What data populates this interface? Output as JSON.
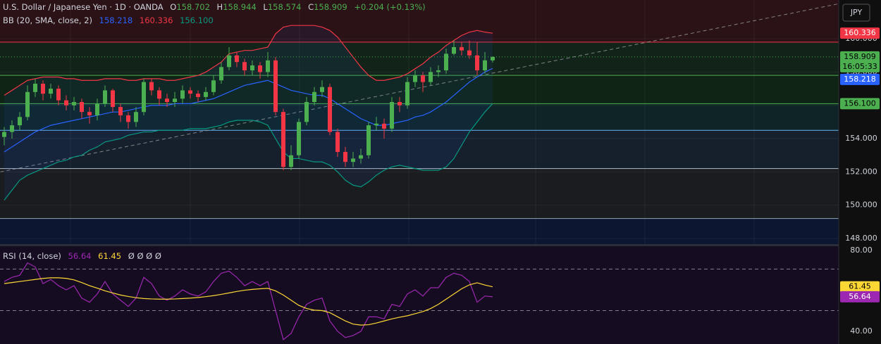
{
  "chart_data": {
    "type": "candlestick",
    "title": "U.S. Dollar / Japanese Yen · 1D · OANDA",
    "ohlc_letters": [
      "O",
      "H",
      "L",
      "C"
    ],
    "change": "+0.204 (+0.13%)",
    "currency": "JPY",
    "countdown": "16:05:33",
    "up_color": "#4caf50",
    "down_color": "#f23645",
    "ylim": [
      147.66,
      162.33
    ],
    "yticks": [
      {
        "value": 148,
        "label": "148.000"
      },
      {
        "value": 150,
        "label": "150.000"
      },
      {
        "value": 152,
        "label": "152.000"
      },
      {
        "value": 154,
        "label": "154.000"
      },
      {
        "value": 156,
        "label": "156.000"
      },
      {
        "value": 158,
        "label": "158.000"
      },
      {
        "value": 160,
        "label": "160.000"
      }
    ],
    "grid": true,
    "candles": [
      [
        154.1,
        154.7,
        153.6,
        154.4
      ],
      [
        154.4,
        155.1,
        154.0,
        154.8
      ],
      [
        154.8,
        155.6,
        154.5,
        155.3
      ],
      [
        155.3,
        157.2,
        155.1,
        156.8
      ],
      [
        156.8,
        157.6,
        156.5,
        157.3
      ],
      [
        157.3,
        157.5,
        156.3,
        156.7
      ],
      [
        156.7,
        157.3,
        156.4,
        157.0
      ],
      [
        157.0,
        157.2,
        156.0,
        156.3
      ],
      [
        156.3,
        156.6,
        155.7,
        156.0
      ],
      [
        156.0,
        156.5,
        155.7,
        156.2
      ],
      [
        156.2,
        156.4,
        155.2,
        155.6
      ],
      [
        155.6,
        155.9,
        154.9,
        155.4
      ],
      [
        155.4,
        156.4,
        155.1,
        156.1
      ],
      [
        156.1,
        157.2,
        155.9,
        156.9
      ],
      [
        156.9,
        157.0,
        155.6,
        155.9
      ],
      [
        155.9,
        156.1,
        155.0,
        155.4
      ],
      [
        155.4,
        155.6,
        154.6,
        155.0
      ],
      [
        155.0,
        155.9,
        154.7,
        155.6
      ],
      [
        155.6,
        157.6,
        155.4,
        157.4
      ],
      [
        157.4,
        157.6,
        156.6,
        156.9
      ],
      [
        156.9,
        157.1,
        156.0,
        156.4
      ],
      [
        156.4,
        156.7,
        155.9,
        156.2
      ],
      [
        156.2,
        156.8,
        155.9,
        156.4
      ],
      [
        156.4,
        157.2,
        156.1,
        156.9
      ],
      [
        156.9,
        157.1,
        156.4,
        156.7
      ],
      [
        156.7,
        156.9,
        156.2,
        156.5
      ],
      [
        156.5,
        157.1,
        156.3,
        156.8
      ],
      [
        156.8,
        157.8,
        156.6,
        157.5
      ],
      [
        157.5,
        158.6,
        157.3,
        158.3
      ],
      [
        158.3,
        159.5,
        158.1,
        159.0
      ],
      [
        159.0,
        159.2,
        158.3,
        158.6
      ],
      [
        158.6,
        158.8,
        157.8,
        158.1
      ],
      [
        158.1,
        158.7,
        157.8,
        158.4
      ],
      [
        158.4,
        158.6,
        157.6,
        158.0
      ],
      [
        158.0,
        159.2,
        157.7,
        158.7
      ],
      [
        158.7,
        158.9,
        155.4,
        155.6
      ],
      [
        155.6,
        155.8,
        152.1,
        152.3
      ],
      [
        152.3,
        153.6,
        152.1,
        153.0
      ],
      [
        153.0,
        155.2,
        152.8,
        155.0
      ],
      [
        155.0,
        156.5,
        154.8,
        156.2
      ],
      [
        156.2,
        157.1,
        156.0,
        156.8
      ],
      [
        156.8,
        157.5,
        156.5,
        157.1
      ],
      [
        157.1,
        157.3,
        154.2,
        154.4
      ],
      [
        154.4,
        154.6,
        152.9,
        153.2
      ],
      [
        153.2,
        153.5,
        152.3,
        152.6
      ],
      [
        152.6,
        153.2,
        152.3,
        152.8
      ],
      [
        152.8,
        153.4,
        152.5,
        153.0
      ],
      [
        153.0,
        155.0,
        152.8,
        154.8
      ],
      [
        154.8,
        155.3,
        154.5,
        154.9
      ],
      [
        154.9,
        155.2,
        154.0,
        154.6
      ],
      [
        154.6,
        156.5,
        154.4,
        156.2
      ],
      [
        156.2,
        156.5,
        155.6,
        156.0
      ],
      [
        156.0,
        157.7,
        155.8,
        157.4
      ],
      [
        157.4,
        158.1,
        157.1,
        157.8
      ],
      [
        157.8,
        158.0,
        156.8,
        157.4
      ],
      [
        157.4,
        158.3,
        157.2,
        158.0
      ],
      [
        158.0,
        158.4,
        157.7,
        158.1
      ],
      [
        158.1,
        159.4,
        157.9,
        159.1
      ],
      [
        159.1,
        159.9,
        159.0,
        159.5
      ],
      [
        159.5,
        159.8,
        159.0,
        159.3
      ],
      [
        159.3,
        159.9,
        158.8,
        159.0
      ],
      [
        159.0,
        159.8,
        157.8,
        158.1
      ],
      [
        158.1,
        159.2,
        157.9,
        158.705
      ],
      [
        158.702,
        158.944,
        158.574,
        158.909
      ]
    ],
    "bands": {
      "label": "BB (20, SMA, close, 2)",
      "fill": "#2962ff",
      "series": [
        {
          "color": "#2962ff",
          "values": [
            153.2,
            153.5,
            153.8,
            154.1,
            154.4,
            154.6,
            154.8,
            154.9,
            155.0,
            155.1,
            155.2,
            155.3,
            155.4,
            155.5,
            155.6,
            155.6,
            155.7,
            155.8,
            155.9,
            156.0,
            156.0,
            156.0,
            156.1,
            156.1,
            156.1,
            156.2,
            156.3,
            156.4,
            156.6,
            156.8,
            157.0,
            157.2,
            157.3,
            157.4,
            157.5,
            157.3,
            157.1,
            156.9,
            156.8,
            156.7,
            156.6,
            156.6,
            156.4,
            156.1,
            155.8,
            155.5,
            155.2,
            155.0,
            154.8,
            154.8,
            154.9,
            155.0,
            155.1,
            155.3,
            155.4,
            155.6,
            155.9,
            156.2,
            156.6,
            157.0,
            157.4,
            157.7,
            158.0,
            158.218
          ]
        },
        {
          "color": "#f23645",
          "values": [
            156.6,
            156.9,
            157.2,
            157.5,
            157.6,
            157.7,
            157.7,
            157.7,
            157.6,
            157.6,
            157.5,
            157.5,
            157.5,
            157.6,
            157.6,
            157.6,
            157.5,
            157.5,
            157.6,
            157.6,
            157.6,
            157.5,
            157.5,
            157.6,
            157.7,
            157.8,
            158.0,
            158.3,
            158.6,
            159.1,
            159.2,
            159.3,
            159.3,
            159.4,
            159.5,
            160.3,
            160.7,
            160.8,
            160.8,
            160.8,
            160.8,
            160.7,
            160.5,
            160.1,
            159.5,
            158.9,
            158.3,
            157.8,
            157.5,
            157.5,
            157.6,
            157.7,
            157.9,
            158.2,
            158.5,
            158.9,
            159.2,
            159.6,
            159.9,
            160.2,
            160.4,
            160.5,
            160.4,
            160.336
          ]
        },
        {
          "color": "#089981",
          "value_label": "156.100",
          "values": [
            150.3,
            150.9,
            151.5,
            151.8,
            152.0,
            152.2,
            152.4,
            152.6,
            152.7,
            152.9,
            153.0,
            153.3,
            153.5,
            153.8,
            153.9,
            154.0,
            154.2,
            154.3,
            154.4,
            154.4,
            154.5,
            154.5,
            154.5,
            154.5,
            154.6,
            154.6,
            154.6,
            154.7,
            154.8,
            155.0,
            155.1,
            155.1,
            155.1,
            155.0,
            154.8,
            154.0,
            153.2,
            152.8,
            152.8,
            152.7,
            152.6,
            152.6,
            152.4,
            152.0,
            151.5,
            151.2,
            151.1,
            151.4,
            151.8,
            152.1,
            152.3,
            152.4,
            152.3,
            152.2,
            152.1,
            152.1,
            152.1,
            152.3,
            152.8,
            153.6,
            154.4,
            155.0,
            155.6,
            156.1
          ]
        }
      ]
    },
    "levels": [
      {
        "value": 159.8,
        "color": "#f23645"
      },
      {
        "value": 157.8,
        "color": "#4caf50"
      },
      {
        "value": 156.1,
        "color": "#4caf50"
      },
      {
        "value": 154.5,
        "color": "#64b5f6"
      },
      {
        "value": 152.2,
        "color": "#b0bec5"
      },
      {
        "value": 149.2,
        "color": "#90a4ae"
      }
    ],
    "zone_colors": [
      "#2a1216",
      "#12241a",
      "#0f2414",
      "#0e2426",
      "#16202c",
      "#1a1c20",
      "#0c1630"
    ],
    "trendline": {
      "from": [
        -0.5,
        152.0
      ],
      "to": [
        107.6,
        162.1
      ],
      "color": "#9e9e9e"
    },
    "rsi": {
      "label": "RSI (14, close)",
      "extra": "Ø Ø Ø Ø",
      "ylim": [
        33.9,
        81
      ],
      "yticks": [
        {
          "value": 80,
          "label": "80.00"
        },
        {
          "value": 40,
          "label": "40.00"
        }
      ],
      "levels": [
        70,
        50
      ],
      "series": [
        {
          "color": "#9c27b0",
          "values": [
            64,
            66,
            67,
            73,
            71,
            63,
            65,
            62,
            60,
            62,
            56,
            54,
            58,
            64,
            58,
            55,
            52,
            56,
            66,
            63,
            57,
            55,
            57,
            60,
            58,
            57,
            59,
            64,
            68,
            69,
            66,
            62,
            64,
            62,
            64,
            50,
            36,
            39,
            47,
            53,
            55,
            56,
            45,
            40,
            37,
            38,
            40,
            47,
            47,
            46,
            53,
            52,
            58,
            60,
            57,
            61,
            61,
            66,
            68,
            67,
            64,
            54,
            57,
            56.64
          ]
        },
        {
          "color": "#fdd835",
          "values": [
            63,
            63.5,
            64,
            64.5,
            65,
            65.5,
            65.8,
            65.8,
            65.5,
            64.8,
            63.5,
            62,
            60.8,
            59.5,
            58.5,
            57.5,
            56.8,
            56.2,
            55.8,
            55.6,
            55.5,
            55.5,
            55.6,
            55.8,
            56,
            56.3,
            56.7,
            57.2,
            57.8,
            58.5,
            59.2,
            59.8,
            60.2,
            60.5,
            60.7,
            59.5,
            57.5,
            55,
            52.5,
            51,
            50.2,
            50,
            49,
            47,
            45,
            43.5,
            43,
            43.2,
            44,
            45,
            46,
            46.8,
            47.5,
            48.5,
            49.5,
            51,
            53,
            55.5,
            58,
            60.5,
            62.4,
            63.4,
            62.3,
            61.45
          ]
        }
      ]
    }
  }
}
